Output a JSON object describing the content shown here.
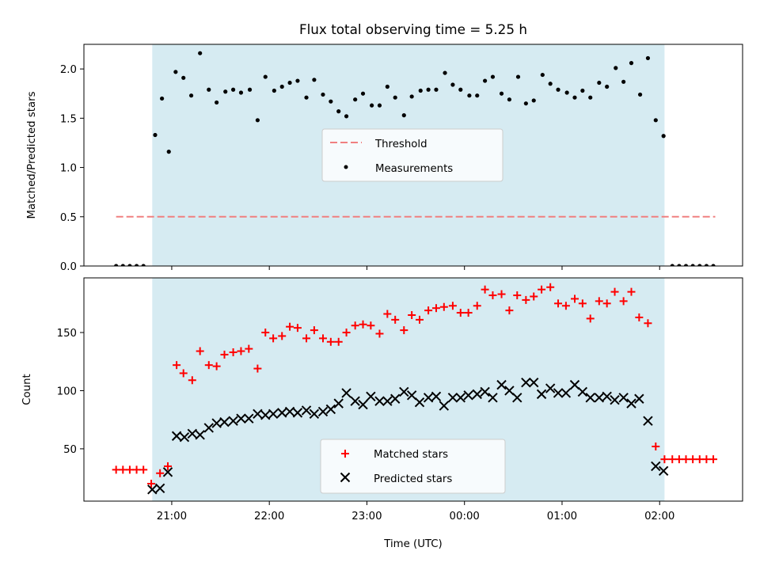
{
  "title": "Flux total observing time = 5.25 h",
  "xlabel": "Time (UTC)",
  "colors": {
    "shade": "#add8e6",
    "threshold": "#f08080",
    "matched": "#ff0000",
    "predicted": "#000000",
    "measurement": "#000000"
  },
  "chart_data": [
    {
      "type": "scatter",
      "ylabel": "Matched/Predicted stars",
      "ylim": [
        0.0,
        2.25
      ],
      "yticks": [
        0.0,
        0.5,
        1.0,
        1.5,
        2.0
      ],
      "ytick_labels": [
        "0.0",
        "0.5",
        "1.0",
        "1.5",
        "2.0"
      ],
      "xlim_hours": [
        20.1,
        26.85
      ],
      "shaded_span_hours": [
        20.8,
        26.05
      ],
      "legend": {
        "position": "center",
        "entries": [
          "Threshold",
          "Measurements"
        ]
      },
      "series": [
        {
          "name": "Threshold",
          "kind": "dashed-line",
          "x": [
            20.43,
            26.57
          ],
          "y": [
            0.5,
            0.5
          ]
        },
        {
          "name": "Measurements",
          "kind": "points",
          "x": [
            20.43,
            20.5,
            20.57,
            20.64,
            20.71,
            20.83,
            20.9,
            20.97,
            21.04,
            21.12,
            21.2,
            21.29,
            21.38,
            21.46,
            21.55,
            21.63,
            21.71,
            21.8,
            21.88,
            21.96,
            22.05,
            22.13,
            22.21,
            22.29,
            22.38,
            22.46,
            22.55,
            22.63,
            22.71,
            22.79,
            22.88,
            22.96,
            23.05,
            23.13,
            23.21,
            23.29,
            23.38,
            23.46,
            23.55,
            23.63,
            23.71,
            23.8,
            23.88,
            23.96,
            24.05,
            24.13,
            24.21,
            24.29,
            24.38,
            24.46,
            24.55,
            24.63,
            24.71,
            24.8,
            24.88,
            24.96,
            25.05,
            25.13,
            25.21,
            25.29,
            25.38,
            25.46,
            25.55,
            25.63,
            25.71,
            25.8,
            25.88,
            25.96,
            26.04,
            26.13,
            26.2,
            26.27,
            26.34,
            26.41,
            26.48,
            26.55
          ],
          "y": [
            0,
            0,
            0,
            0,
            0,
            1.33,
            1.7,
            1.16,
            1.97,
            1.91,
            1.73,
            2.16,
            1.79,
            1.66,
            1.77,
            1.79,
            1.76,
            1.79,
            1.48,
            1.92,
            1.78,
            1.82,
            1.86,
            1.88,
            1.71,
            1.89,
            1.74,
            1.67,
            1.57,
            1.52,
            1.69,
            1.75,
            1.63,
            1.63,
            1.82,
            1.71,
            1.53,
            1.72,
            1.78,
            1.79,
            1.79,
            1.96,
            1.84,
            1.79,
            1.73,
            1.73,
            1.88,
            1.92,
            1.75,
            1.69,
            1.92,
            1.65,
            1.68,
            1.94,
            1.85,
            1.79,
            1.76,
            1.71,
            1.78,
            1.71,
            1.86,
            1.82,
            2.01,
            1.87,
            2.06,
            1.74,
            2.11,
            1.48,
            1.32,
            0,
            0,
            0,
            0,
            0,
            0,
            0
          ]
        }
      ]
    },
    {
      "type": "scatter",
      "ylabel": "Count",
      "ylim": [
        5,
        197
      ],
      "yticks": [
        50,
        100,
        150
      ],
      "ytick_labels": [
        "50",
        "100",
        "150"
      ],
      "xlim_hours": [
        20.1,
        26.85
      ],
      "xticks_hours": [
        21,
        22,
        23,
        24,
        25,
        26
      ],
      "xtick_labels": [
        "21:00",
        "22:00",
        "23:00",
        "00:00",
        "01:00",
        "02:00"
      ],
      "shaded_span_hours": [
        20.8,
        26.05
      ],
      "legend": {
        "position": "lower center",
        "entries": [
          "Matched stars",
          "Predicted stars"
        ]
      },
      "series": [
        {
          "name": "Matched stars",
          "marker": "+",
          "x": [
            20.43,
            20.5,
            20.57,
            20.64,
            20.71,
            20.79,
            20.88,
            20.96,
            21.05,
            21.12,
            21.21,
            21.29,
            21.38,
            21.46,
            21.54,
            21.63,
            21.71,
            21.79,
            21.88,
            21.96,
            22.04,
            22.13,
            22.21,
            22.29,
            22.38,
            22.46,
            22.55,
            22.63,
            22.71,
            22.79,
            22.88,
            22.96,
            23.04,
            23.13,
            23.21,
            23.29,
            23.38,
            23.46,
            23.54,
            23.63,
            23.71,
            23.79,
            23.88,
            23.96,
            24.04,
            24.13,
            24.21,
            24.29,
            24.38,
            24.46,
            24.54,
            24.63,
            24.71,
            24.79,
            24.88,
            24.96,
            25.04,
            25.13,
            25.21,
            25.29,
            25.38,
            25.46,
            25.54,
            25.63,
            25.71,
            25.79,
            25.88,
            25.96,
            26.05,
            26.13,
            26.2,
            26.27,
            26.34,
            26.41,
            26.48,
            26.55
          ],
          "y": [
            32,
            32,
            32,
            32,
            32,
            20,
            29,
            35,
            122,
            115,
            109,
            134,
            122,
            121,
            131,
            133,
            134,
            136,
            119,
            150,
            145,
            147,
            155,
            154,
            145,
            152,
            145,
            142,
            142,
            150,
            156,
            157,
            156,
            149,
            166,
            161,
            152,
            165,
            161,
            169,
            171,
            172,
            173,
            167,
            167,
            173,
            187,
            182,
            183,
            169,
            182,
            178,
            181,
            187,
            189,
            175,
            173,
            179,
            175,
            162,
            177,
            175,
            185,
            177,
            185,
            163,
            158,
            52,
            41,
            41,
            41,
            41,
            41,
            41,
            41,
            41
          ]
        },
        {
          "name": "Predicted stars",
          "marker": "x",
          "x": [
            20.8,
            20.88,
            20.96,
            21.05,
            21.13,
            21.21,
            21.29,
            21.38,
            21.46,
            21.54,
            21.63,
            21.71,
            21.79,
            21.88,
            21.96,
            22.04,
            22.13,
            22.21,
            22.29,
            22.38,
            22.46,
            22.55,
            22.63,
            22.71,
            22.79,
            22.88,
            22.96,
            23.04,
            23.13,
            23.21,
            23.29,
            23.38,
            23.46,
            23.54,
            23.63,
            23.71,
            23.79,
            23.88,
            23.96,
            24.04,
            24.13,
            24.21,
            24.29,
            24.38,
            24.46,
            24.54,
            24.63,
            24.71,
            24.79,
            24.88,
            24.96,
            25.04,
            25.13,
            25.21,
            25.29,
            25.38,
            25.46,
            25.54,
            25.63,
            25.71,
            25.79,
            25.88,
            25.96,
            26.04
          ],
          "y": [
            15,
            16,
            30,
            61,
            60,
            63,
            62,
            68,
            72,
            73,
            74,
            76,
            76,
            80,
            79,
            80,
            81,
            82,
            81,
            83,
            80,
            82,
            84,
            89,
            98,
            91,
            88,
            95,
            91,
            91,
            93,
            99,
            96,
            90,
            94,
            95,
            87,
            94,
            94,
            96,
            97,
            99,
            94,
            105,
            100,
            94,
            107,
            107,
            97,
            102,
            98,
            98,
            105,
            99,
            94,
            94,
            95,
            92,
            94,
            89,
            93,
            74,
            35,
            31
          ]
        }
      ]
    }
  ]
}
